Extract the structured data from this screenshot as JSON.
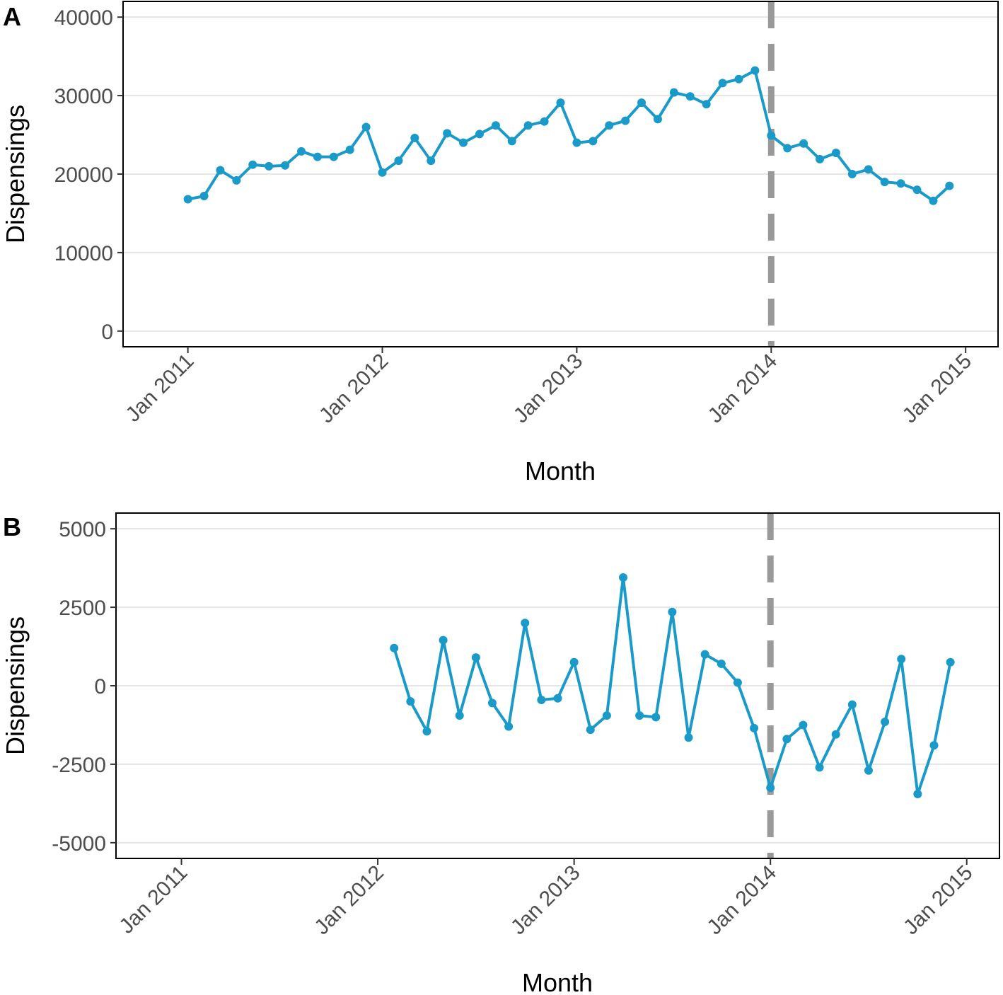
{
  "colors": {
    "series": "#1a9ac9",
    "reference_line": "#999999",
    "grid": "#e5e5e5",
    "frame": "#000000"
  },
  "chart_data": [
    {
      "type": "line",
      "panel_label": "A",
      "xlabel": "Month",
      "ylabel": "Dispensings",
      "ylim": [
        -2000,
        42000
      ],
      "yticks": [
        0,
        10000,
        20000,
        30000,
        40000
      ],
      "ytick_labels": [
        "0",
        "10000",
        "20000",
        "30000",
        "40000"
      ],
      "xlim": [
        "2010-09",
        "2015-03"
      ],
      "xticks": [
        "2011-01",
        "2012-01",
        "2013-01",
        "2014-01",
        "2015-01"
      ],
      "xtick_labels": [
        "Jan 2011",
        "Jan 2012",
        "Jan 2013",
        "Jan 2014",
        "Jan 2015"
      ],
      "reference_line_x": "2014-01",
      "grid": true,
      "x": [
        "2011-01",
        "2011-02",
        "2011-03",
        "2011-04",
        "2011-05",
        "2011-06",
        "2011-07",
        "2011-08",
        "2011-09",
        "2011-10",
        "2011-11",
        "2011-12",
        "2012-01",
        "2012-02",
        "2012-03",
        "2012-04",
        "2012-05",
        "2012-06",
        "2012-07",
        "2012-08",
        "2012-09",
        "2012-10",
        "2012-11",
        "2012-12",
        "2013-01",
        "2013-02",
        "2013-03",
        "2013-04",
        "2013-05",
        "2013-06",
        "2013-07",
        "2013-08",
        "2013-09",
        "2013-10",
        "2013-11",
        "2013-12",
        "2014-01",
        "2014-02",
        "2014-03",
        "2014-04",
        "2014-05",
        "2014-06",
        "2014-07",
        "2014-08",
        "2014-09",
        "2014-10",
        "2014-11",
        "2014-12"
      ],
      "values": [
        16800,
        17200,
        20500,
        19200,
        21200,
        21000,
        21100,
        22900,
        22200,
        22200,
        23100,
        26000,
        20200,
        21700,
        24600,
        21700,
        25200,
        24000,
        25100,
        26200,
        24200,
        26200,
        26700,
        29100,
        24000,
        24200,
        26200,
        26800,
        29100,
        27000,
        30400,
        29900,
        28900,
        31600,
        32100,
        33200,
        24900,
        23300,
        23900,
        21900,
        22700,
        20000,
        20600,
        19000,
        18800,
        18000,
        16600,
        18500
      ]
    },
    {
      "type": "line",
      "panel_label": "B",
      "xlabel": "Month",
      "ylabel": "Dispensings",
      "ylim": [
        -5500,
        5500
      ],
      "yticks": [
        -5000,
        -2500,
        0,
        2500,
        5000
      ],
      "ytick_labels": [
        "-5000",
        "-2500",
        "0",
        "2500",
        "5000"
      ],
      "xlim": [
        "2010-09",
        "2015-03"
      ],
      "xticks": [
        "2011-01",
        "2012-01",
        "2013-01",
        "2014-01",
        "2015-01"
      ],
      "xtick_labels": [
        "Jan 2011",
        "Jan 2012",
        "Jan 2013",
        "Jan 2014",
        "Jan 2015"
      ],
      "reference_line_x": "2014-01",
      "grid": true,
      "x": [
        "2012-02",
        "2012-03",
        "2012-04",
        "2012-05",
        "2012-06",
        "2012-07",
        "2012-08",
        "2012-09",
        "2012-10",
        "2012-11",
        "2012-12",
        "2013-01",
        "2013-02",
        "2013-03",
        "2013-04",
        "2013-05",
        "2013-06",
        "2013-07",
        "2013-08",
        "2013-09",
        "2013-10",
        "2013-11",
        "2013-12",
        "2014-01",
        "2014-02",
        "2014-03",
        "2014-04",
        "2014-05",
        "2014-06",
        "2014-07",
        "2014-08",
        "2014-09",
        "2014-10",
        "2014-11",
        "2014-12"
      ],
      "values": [
        1200,
        -500,
        -1450,
        1450,
        -950,
        900,
        -550,
        -1300,
        2000,
        -450,
        -400,
        750,
        -1400,
        -950,
        3450,
        -950,
        -1000,
        2350,
        -1650,
        1000,
        700,
        100,
        -1350,
        -3250,
        -1700,
        -1250,
        -2600,
        -1550,
        -600,
        -2700,
        -1150,
        850,
        -3450,
        -1900,
        750
      ]
    }
  ]
}
